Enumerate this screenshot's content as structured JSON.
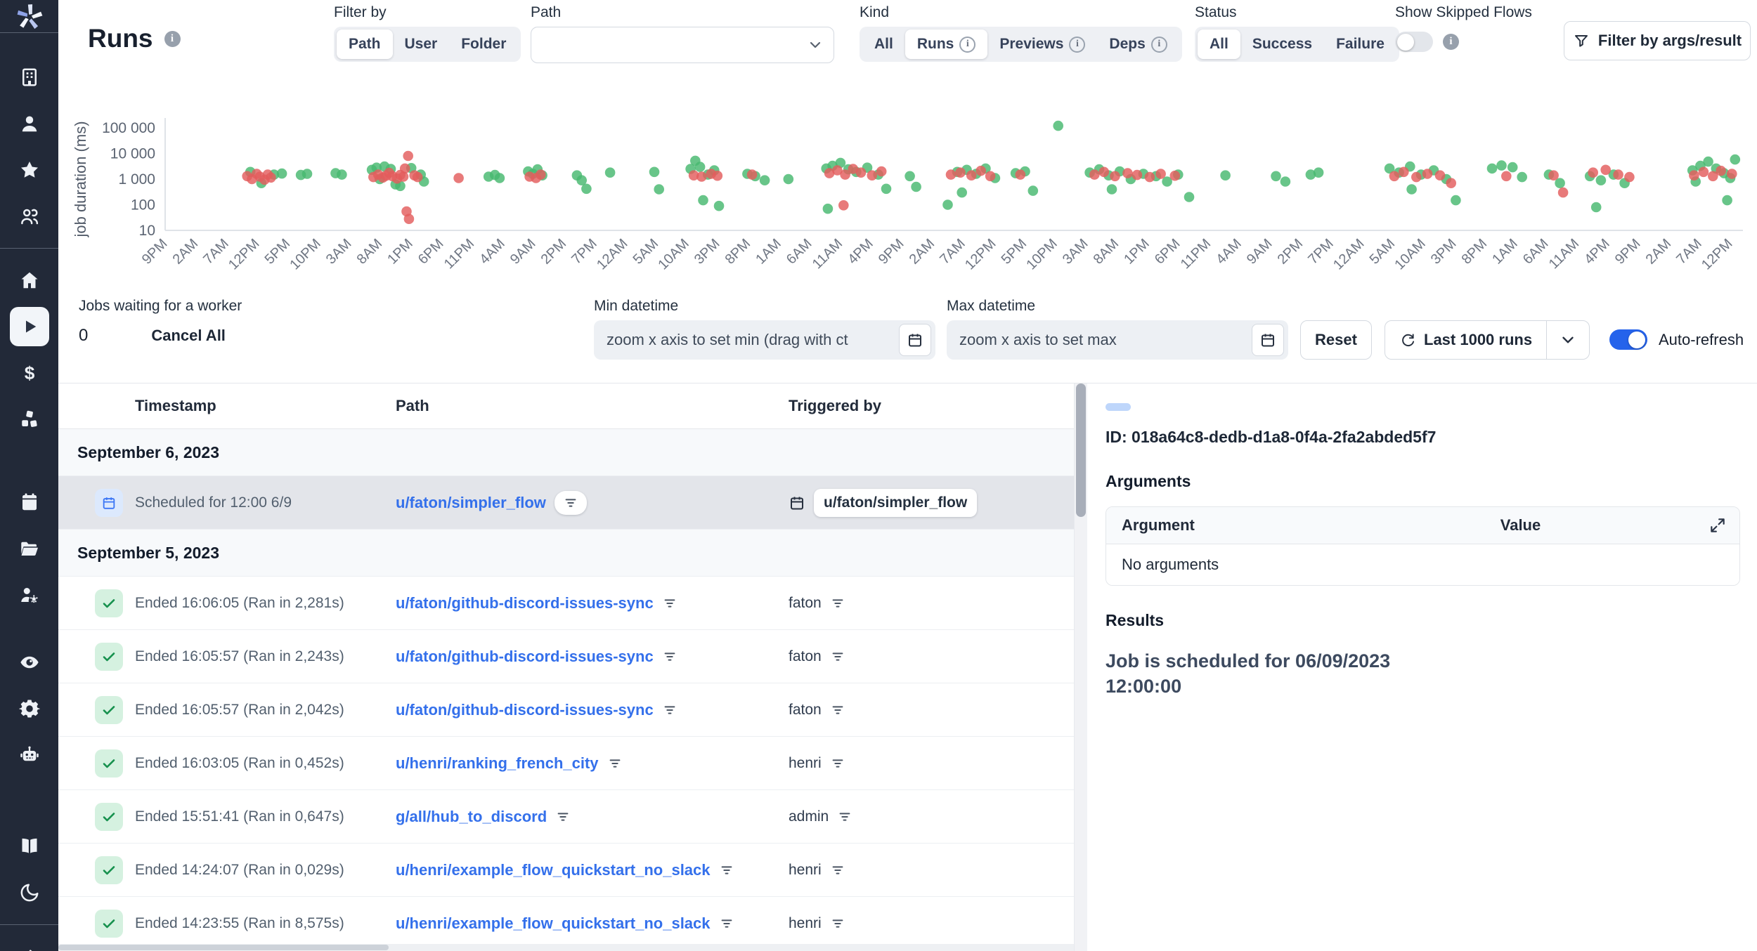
{
  "app": {
    "name": "Windmill"
  },
  "sidebar": {
    "groups": [
      {
        "icons": [
          "building",
          "user",
          "star",
          "users"
        ],
        "divider_after": true
      },
      {
        "icons": [
          "home",
          "play",
          "dollar",
          "cubes"
        ],
        "active": "play"
      },
      {
        "icons": [
          "calendar",
          "folder-open",
          "users-gear"
        ]
      },
      {
        "icons": [
          "eye",
          "gear",
          "robot"
        ]
      },
      {
        "icons": [
          "book",
          "moon"
        ],
        "divider_after": true
      },
      {
        "icons": [
          "arrow-right"
        ]
      }
    ]
  },
  "header": {
    "title": "Runs",
    "filter_by": {
      "label": "Filter by",
      "options": [
        "Path",
        "User",
        "Folder"
      ],
      "selected": "Path"
    },
    "path_filter": {
      "label": "Path",
      "value": ""
    },
    "kind": {
      "label": "Kind",
      "options": [
        "All",
        "Runs",
        "Previews",
        "Deps"
      ],
      "selected": "Runs",
      "options_with_info": [
        "Runs",
        "Previews",
        "Deps"
      ]
    },
    "status": {
      "label": "Status",
      "options": [
        "All",
        "Success",
        "Failure"
      ],
      "selected": "All"
    },
    "show_skipped": {
      "label": "Show Skipped Flows",
      "enabled": false
    },
    "filter_args_button": "Filter by args/result"
  },
  "controls": {
    "jobs_waiting_label": "Jobs waiting for a worker",
    "jobs_waiting_count": "0",
    "cancel_all": "Cancel All",
    "min_datetime": {
      "label": "Min datetime",
      "value": "zoom x axis to set min (drag with ct"
    },
    "max_datetime": {
      "label": "Max datetime",
      "value": "zoom x axis to set max"
    },
    "reset": "Reset",
    "runs_range": "Last 1000 runs",
    "auto_refresh": {
      "label": "Auto-refresh",
      "enabled": true
    }
  },
  "chart_data": {
    "type": "scatter",
    "title": "",
    "xlabel": "",
    "ylabel": "job duration (ms)",
    "yscale": "log",
    "ylim": [
      10,
      100000
    ],
    "grid": false,
    "legend": false,
    "yticks": [
      "100 000",
      "10 000",
      "1 000",
      "100",
      "10"
    ],
    "ytick_values": [
      100000,
      10000,
      1000,
      100,
      10
    ],
    "xticks": [
      "9PM",
      "2AM",
      "7AM",
      "12PM",
      "5PM",
      "10PM",
      "3AM",
      "8AM",
      "1PM",
      "6PM",
      "11PM",
      "4AM",
      "9AM",
      "2PM",
      "7PM",
      "12AM",
      "5AM",
      "10AM",
      "3PM",
      "8PM",
      "1AM",
      "6AM",
      "11AM",
      "4PM",
      "9PM",
      "2AM",
      "7AM",
      "12PM",
      "5PM",
      "10PM",
      "3AM",
      "8AM",
      "1PM",
      "6PM",
      "11PM",
      "4AM",
      "9AM",
      "2PM",
      "7PM",
      "12AM",
      "5AM",
      "10AM",
      "3PM",
      "8PM",
      "1AM",
      "6AM",
      "11AM",
      "4PM",
      "9PM",
      "2AM",
      "7AM",
      "12PM"
    ],
    "series": [
      {
        "name": "success",
        "color": "#47b86f",
        "points": [
          [
            5.4,
            1900
          ],
          [
            6.1,
            700
          ],
          [
            6.9,
            1500
          ],
          [
            7.4,
            1650
          ],
          [
            8.6,
            1450
          ],
          [
            9.0,
            1600
          ],
          [
            10.8,
            1700
          ],
          [
            11.2,
            1500
          ],
          [
            13.1,
            2300
          ],
          [
            13.4,
            2800
          ],
          [
            13.6,
            1000
          ],
          [
            13.9,
            3100
          ],
          [
            14.3,
            2500
          ],
          [
            14.6,
            620
          ],
          [
            14.9,
            540
          ],
          [
            15.6,
            2700
          ],
          [
            16.2,
            1500
          ],
          [
            16.4,
            800
          ],
          [
            20.5,
            1250
          ],
          [
            20.9,
            1450
          ],
          [
            21.2,
            1100
          ],
          [
            23.0,
            2000
          ],
          [
            23.3,
            1600
          ],
          [
            23.6,
            2400
          ],
          [
            23.9,
            1400
          ],
          [
            26.1,
            1400
          ],
          [
            26.4,
            900
          ],
          [
            26.7,
            420
          ],
          [
            28.2,
            1800
          ],
          [
            31.0,
            1900
          ],
          [
            31.3,
            400
          ],
          [
            33.3,
            2500
          ],
          [
            33.6,
            5200
          ],
          [
            33.9,
            3000
          ],
          [
            34.1,
            150
          ],
          [
            34.4,
            1500
          ],
          [
            34.8,
            2200
          ],
          [
            35.1,
            90
          ],
          [
            36.9,
            1600
          ],
          [
            37.4,
            1300
          ],
          [
            38.0,
            900
          ],
          [
            39.5,
            1000
          ],
          [
            41.9,
            2600
          ],
          [
            42.0,
            70
          ],
          [
            42.3,
            3300
          ],
          [
            42.8,
            4300
          ],
          [
            43.3,
            2400
          ],
          [
            43.8,
            1900
          ],
          [
            44.5,
            2800
          ],
          [
            45.2,
            1500
          ],
          [
            45.7,
            420
          ],
          [
            47.2,
            1300
          ],
          [
            47.6,
            500
          ],
          [
            49.6,
            100
          ],
          [
            50.2,
            1900
          ],
          [
            50.5,
            300
          ],
          [
            50.8,
            2300
          ],
          [
            51.4,
            1600
          ],
          [
            52.0,
            2600
          ],
          [
            52.6,
            1100
          ],
          [
            53.9,
            1700
          ],
          [
            54.5,
            2000
          ],
          [
            55.0,
            350
          ],
          [
            56.6,
            120000
          ],
          [
            58.6,
            1800
          ],
          [
            59.2,
            2400
          ],
          [
            59.8,
            1400
          ],
          [
            60.0,
            400
          ],
          [
            60.5,
            2000
          ],
          [
            61.2,
            1000
          ],
          [
            62.0,
            1600
          ],
          [
            62.8,
            1300
          ],
          [
            63.5,
            800
          ],
          [
            64.2,
            1500
          ],
          [
            64.9,
            200
          ],
          [
            67.2,
            1400
          ],
          [
            70.4,
            1300
          ],
          [
            71.0,
            800
          ],
          [
            72.6,
            1500
          ],
          [
            73.1,
            1800
          ],
          [
            77.6,
            2600
          ],
          [
            78.2,
            1800
          ],
          [
            78.9,
            3100
          ],
          [
            79.0,
            400
          ],
          [
            79.6,
            1500
          ],
          [
            80.4,
            2200
          ],
          [
            81.2,
            1000
          ],
          [
            81.8,
            150
          ],
          [
            84.1,
            2600
          ],
          [
            84.7,
            3400
          ],
          [
            85.4,
            2900
          ],
          [
            86.0,
            1200
          ],
          [
            87.7,
            1500
          ],
          [
            88.4,
            700
          ],
          [
            90.3,
            1300
          ],
          [
            90.7,
            80
          ],
          [
            91.0,
            900
          ],
          [
            91.8,
            1500
          ],
          [
            92.5,
            700
          ],
          [
            96.8,
            2200
          ],
          [
            97.0,
            800
          ],
          [
            97.3,
            3300
          ],
          [
            97.8,
            4800
          ],
          [
            98.3,
            2600
          ],
          [
            98.8,
            1700
          ],
          [
            99.0,
            150
          ],
          [
            99.2,
            1100
          ],
          [
            99.5,
            5800
          ]
        ]
      },
      {
        "name": "failure",
        "color": "#e35d5d",
        "points": [
          [
            5.2,
            1300
          ],
          [
            5.5,
            1000
          ],
          [
            5.8,
            1600
          ],
          [
            6.0,
            1250
          ],
          [
            6.3,
            950
          ],
          [
            6.5,
            1500
          ],
          [
            6.7,
            1150
          ],
          [
            13.2,
            1200
          ],
          [
            13.5,
            1500
          ],
          [
            13.8,
            1150
          ],
          [
            14.0,
            1350
          ],
          [
            14.2,
            1750
          ],
          [
            14.4,
            1300
          ],
          [
            14.7,
            1050
          ],
          [
            14.9,
            1450
          ],
          [
            15.1,
            1250
          ],
          [
            15.2,
            2600
          ],
          [
            15.3,
            55
          ],
          [
            15.4,
            8000
          ],
          [
            15.45,
            28
          ],
          [
            15.8,
            1400
          ],
          [
            16.0,
            1200
          ],
          [
            18.6,
            1100
          ],
          [
            23.1,
            1250
          ],
          [
            23.5,
            1100
          ],
          [
            23.8,
            1500
          ],
          [
            33.5,
            1400
          ],
          [
            34.0,
            1250
          ],
          [
            34.6,
            1600
          ],
          [
            35.0,
            1350
          ],
          [
            37.2,
            1500
          ],
          [
            42.1,
            1700
          ],
          [
            42.6,
            2200
          ],
          [
            43.0,
            95
          ],
          [
            43.1,
            1500
          ],
          [
            43.6,
            2500
          ],
          [
            44.1,
            1800
          ],
          [
            44.8,
            1400
          ],
          [
            45.4,
            2000
          ],
          [
            49.8,
            1500
          ],
          [
            50.4,
            1800
          ],
          [
            51.1,
            1400
          ],
          [
            51.7,
            2100
          ],
          [
            52.3,
            1300
          ],
          [
            54.2,
            1500
          ],
          [
            58.9,
            1500
          ],
          [
            59.5,
            1900
          ],
          [
            60.2,
            1300
          ],
          [
            61.0,
            1700
          ],
          [
            61.6,
            1450
          ],
          [
            62.4,
            1200
          ],
          [
            63.1,
            1600
          ],
          [
            64.0,
            1350
          ],
          [
            77.9,
            1300
          ],
          [
            78.5,
            1900
          ],
          [
            79.3,
            1200
          ],
          [
            80.0,
            1600
          ],
          [
            80.8,
            1400
          ],
          [
            81.5,
            700
          ],
          [
            85.0,
            1300
          ],
          [
            88.0,
            1400
          ],
          [
            88.6,
            300
          ],
          [
            90.5,
            1800
          ],
          [
            91.3,
            2300
          ],
          [
            92.1,
            1500
          ],
          [
            92.8,
            1200
          ],
          [
            96.9,
            1400
          ],
          [
            97.5,
            1900
          ],
          [
            98.1,
            1300
          ],
          [
            98.6,
            2100
          ],
          [
            99.3,
            1600
          ]
        ]
      }
    ]
  },
  "table": {
    "columns": [
      "Timestamp",
      "Path",
      "Triggered by"
    ],
    "rows": [
      {
        "type": "group",
        "label": "September 6, 2023"
      },
      {
        "type": "run",
        "status": "scheduled",
        "selected": true,
        "timestamp": "Scheduled for 12:00 6/9",
        "path": "u/faton/simpler_flow",
        "triggered_by": "u/faton/simpler_flow",
        "triggered_icon": "calendar"
      },
      {
        "type": "group",
        "label": "September 5, 2023"
      },
      {
        "type": "run",
        "status": "success",
        "timestamp": "Ended 16:06:05 (Ran in 2,281s)",
        "path": "u/faton/github-discord-issues-sync",
        "triggered_by": "faton"
      },
      {
        "type": "run",
        "status": "success",
        "timestamp": "Ended 16:05:57 (Ran in 2,243s)",
        "path": "u/faton/github-discord-issues-sync",
        "triggered_by": "faton"
      },
      {
        "type": "run",
        "status": "success",
        "timestamp": "Ended 16:05:57 (Ran in 2,042s)",
        "path": "u/faton/github-discord-issues-sync",
        "triggered_by": "faton"
      },
      {
        "type": "run",
        "status": "success",
        "timestamp": "Ended 16:03:05 (Ran in 0,452s)",
        "path": "u/henri/ranking_french_city",
        "triggered_by": "henri"
      },
      {
        "type": "run",
        "status": "success",
        "timestamp": "Ended 15:51:41 (Ran in 0,647s)",
        "path": "g/all/hub_to_discord",
        "triggered_by": "admin"
      },
      {
        "type": "run",
        "status": "success",
        "timestamp": "Ended 14:24:07 (Ran in 0,029s)",
        "path": "u/henri/example_flow_quickstart_no_slack",
        "triggered_by": "henri"
      },
      {
        "type": "run",
        "status": "success",
        "timestamp": "Ended 14:23:55 (Ran in 8,575s)",
        "path": "u/henri/example_flow_quickstart_no_slack",
        "triggered_by": "henri"
      }
    ]
  },
  "detail": {
    "id_line": "ID: 018a64c8-dedb-d1a8-0f4a-2fa2abded5f7",
    "arguments_title": "Arguments",
    "arguments_columns": [
      "Argument",
      "Value"
    ],
    "arguments_empty": "No arguments",
    "results_title": "Results",
    "result_text": "Job is scheduled for 06/09/2023 12:00:00"
  },
  "colors": {
    "accent": "#2563eb",
    "link": "#3470eb",
    "success": "#47b86f",
    "failure": "#e35d5d",
    "sidebar_bg": "#222938"
  }
}
